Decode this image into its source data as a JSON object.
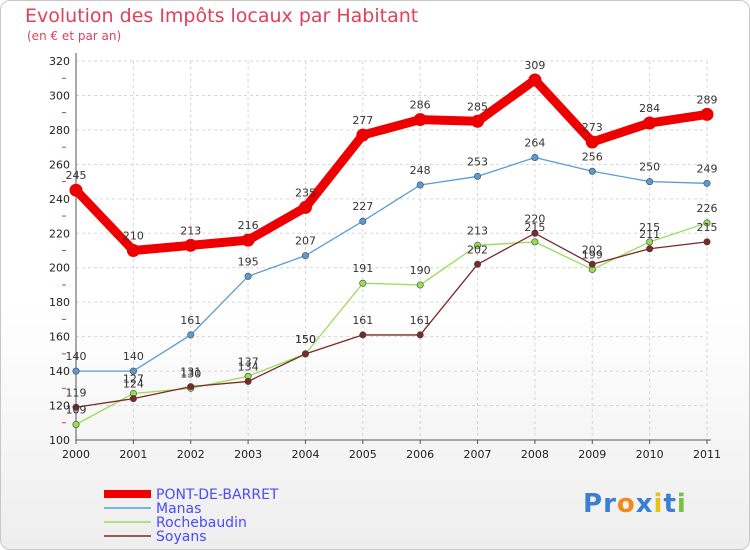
{
  "chart_data": {
    "type": "line",
    "title": "Evolution des Impôts locaux par Habitant",
    "subtitle": "(en € et par an)",
    "xlabel": "",
    "ylabel": "",
    "categories": [
      "2000",
      "2001",
      "2002",
      "2003",
      "2004",
      "2005",
      "2006",
      "2007",
      "2008",
      "2009",
      "2010",
      "2011"
    ],
    "ylim": [
      100,
      320
    ],
    "yticks": [
      "100",
      "120",
      "140",
      "160",
      "180",
      "200",
      "220",
      "240",
      "260",
      "280",
      "300",
      "320"
    ],
    "grid": true,
    "legend_position": "bottom-left",
    "series": [
      {
        "name": "PONT-DE-BARRET",
        "color": "#ee0000",
        "values": [
          245,
          210,
          213,
          216,
          235,
          277,
          286,
          285,
          309,
          273,
          284,
          289
        ]
      },
      {
        "name": "Manas",
        "color": "#5b9bd5",
        "values": [
          140,
          140,
          161,
          195,
          207,
          227,
          248,
          253,
          264,
          256,
          250,
          249
        ]
      },
      {
        "name": "Rochebaudin",
        "color": "#99dd55",
        "values": [
          109,
          127,
          130,
          137,
          150,
          191,
          190,
          213,
          215,
          199,
          215,
          226
        ]
      },
      {
        "name": "Soyans",
        "color": "#7a2a2a",
        "values": [
          119,
          124,
          131,
          134,
          150,
          161,
          161,
          202,
          220,
          202,
          211,
          215
        ]
      }
    ]
  },
  "logo": {
    "text": "Proxiti",
    "letters": [
      "P",
      "r",
      "o",
      "x",
      "i",
      "t",
      "i"
    ],
    "colors": [
      "#3a7fd0",
      "#3a7fd0",
      "#f08a1c",
      "#3a7fd0",
      "#e8c21a",
      "#3a7fd0",
      "#7ac043"
    ]
  }
}
